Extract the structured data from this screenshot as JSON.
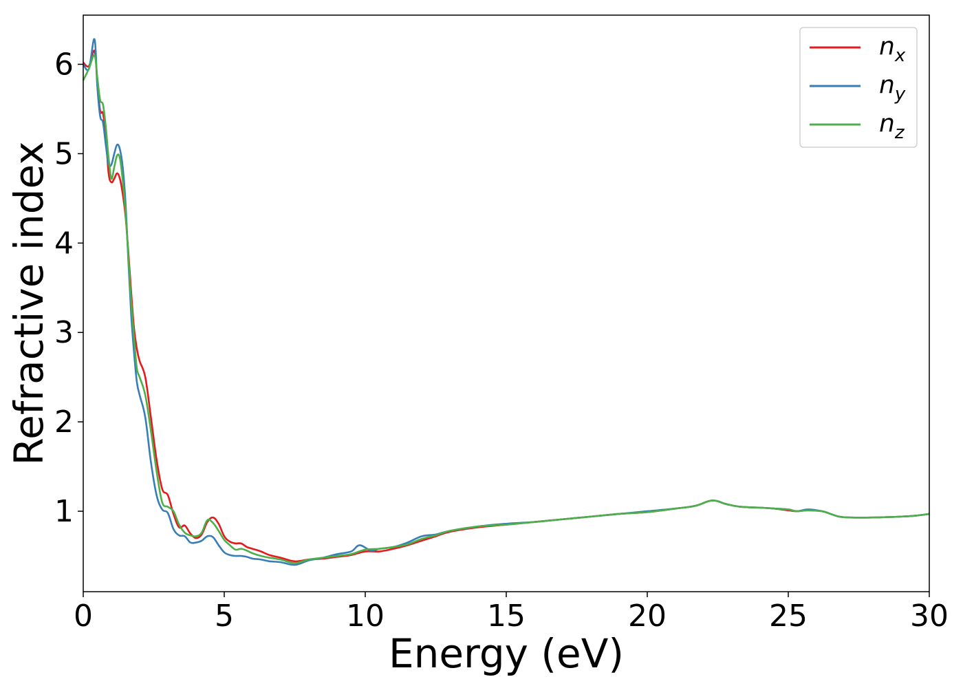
{
  "chart_data": {
    "type": "line",
    "xlabel": "Energy (eV)",
    "ylabel": "Refractive index",
    "xlim": [
      0,
      30
    ],
    "ylim": [
      0.1,
      6.55
    ],
    "xticks": [
      0,
      5,
      10,
      15,
      20,
      25,
      30
    ],
    "yticks": [
      1,
      2,
      3,
      4,
      5,
      6
    ],
    "grid": false,
    "legend_position": "top-right",
    "series": [
      {
        "name": "n",
        "subscript": "x",
        "color": "#e41a1c",
        "x": [
          0,
          0.2,
          0.4,
          0.5,
          0.6,
          0.7,
          0.8,
          0.9,
          1.0,
          1.1,
          1.2,
          1.3,
          1.4,
          1.5,
          1.6,
          1.7,
          1.8,
          1.9,
          2.0,
          2.2,
          2.4,
          2.6,
          2.8,
          3.0,
          3.2,
          3.4,
          3.6,
          3.8,
          4.0,
          4.2,
          4.4,
          4.6,
          4.8,
          5.0,
          5.2,
          5.4,
          5.6,
          5.8,
          6.0,
          6.3,
          6.6,
          7.0,
          7.5,
          8.0,
          8.5,
          9.0,
          9.5,
          10.0,
          10.5,
          11.0,
          11.5,
          12.0,
          12.5,
          13.0,
          14.0,
          15.0,
          16.0,
          17.0,
          18.0,
          19.0,
          20.0,
          21.0,
          21.7,
          22.3,
          22.8,
          23.3,
          24.0,
          24.5,
          25.0,
          25.3,
          25.7,
          26.2,
          26.5,
          26.8,
          27.2,
          28.0,
          29.0,
          29.5,
          30.0
        ],
        "y": [
          6.02,
          5.98,
          6.15,
          5.8,
          5.48,
          5.45,
          5.2,
          4.78,
          4.68,
          4.72,
          4.78,
          4.72,
          4.55,
          4.3,
          3.9,
          3.45,
          3.05,
          2.82,
          2.68,
          2.5,
          2.05,
          1.58,
          1.25,
          1.18,
          0.97,
          0.82,
          0.84,
          0.75,
          0.7,
          0.74,
          0.88,
          0.93,
          0.86,
          0.72,
          0.66,
          0.64,
          0.64,
          0.6,
          0.58,
          0.55,
          0.51,
          0.48,
          0.44,
          0.46,
          0.47,
          0.49,
          0.51,
          0.55,
          0.55,
          0.58,
          0.62,
          0.67,
          0.72,
          0.77,
          0.82,
          0.85,
          0.88,
          0.91,
          0.94,
          0.97,
          0.99,
          1.03,
          1.06,
          1.12,
          1.08,
          1.05,
          1.04,
          1.03,
          1.01,
          1.0,
          1.01,
          1.0,
          0.97,
          0.94,
          0.93,
          0.93,
          0.94,
          0.95,
          0.97
        ]
      },
      {
        "name": "n",
        "subscript": "y",
        "color": "#377eb8",
        "x": [
          0,
          0.2,
          0.4,
          0.5,
          0.6,
          0.7,
          0.8,
          0.9,
          1.0,
          1.1,
          1.2,
          1.3,
          1.4,
          1.5,
          1.6,
          1.7,
          1.8,
          1.9,
          2.0,
          2.2,
          2.4,
          2.6,
          2.8,
          3.0,
          3.2,
          3.4,
          3.6,
          3.8,
          4.0,
          4.2,
          4.4,
          4.6,
          4.8,
          5.0,
          5.2,
          5.4,
          5.6,
          5.8,
          6.0,
          6.3,
          6.6,
          7.0,
          7.5,
          8.0,
          8.5,
          9.0,
          9.5,
          9.8,
          10.2,
          10.5,
          11.0,
          11.5,
          12.0,
          12.5,
          13.0,
          14.0,
          15.0,
          16.0,
          17.0,
          18.0,
          19.0,
          20.0,
          21.0,
          21.7,
          22.3,
          22.8,
          23.3,
          24.0,
          24.5,
          25.0,
          25.3,
          25.7,
          26.2,
          26.5,
          26.8,
          27.2,
          28.0,
          29.0,
          29.5,
          30.0
        ],
        "y": [
          6.0,
          5.95,
          6.28,
          5.75,
          5.42,
          5.35,
          5.1,
          4.88,
          4.88,
          5.0,
          5.1,
          5.05,
          4.85,
          4.45,
          3.8,
          3.2,
          2.78,
          2.45,
          2.3,
          2.05,
          1.55,
          1.18,
          1.02,
          0.98,
          0.8,
          0.73,
          0.72,
          0.65,
          0.65,
          0.67,
          0.72,
          0.71,
          0.62,
          0.54,
          0.51,
          0.5,
          0.5,
          0.49,
          0.47,
          0.46,
          0.44,
          0.43,
          0.4,
          0.45,
          0.48,
          0.52,
          0.55,
          0.62,
          0.56,
          0.58,
          0.6,
          0.65,
          0.72,
          0.74,
          0.78,
          0.83,
          0.86,
          0.88,
          0.91,
          0.94,
          0.97,
          1.0,
          1.03,
          1.06,
          1.12,
          1.08,
          1.05,
          1.04,
          1.03,
          1.02,
          1.0,
          1.02,
          1.0,
          0.97,
          0.94,
          0.93,
          0.93,
          0.94,
          0.95,
          0.97
        ]
      },
      {
        "name": "n",
        "subscript": "z",
        "color": "#4daf4a",
        "x": [
          0,
          0.2,
          0.4,
          0.5,
          0.6,
          0.7,
          0.8,
          0.9,
          1.0,
          1.1,
          1.2,
          1.3,
          1.4,
          1.5,
          1.6,
          1.7,
          1.8,
          1.9,
          2.0,
          2.2,
          2.4,
          2.6,
          2.8,
          3.0,
          3.2,
          3.4,
          3.6,
          3.8,
          4.0,
          4.2,
          4.4,
          4.6,
          4.8,
          5.0,
          5.2,
          5.4,
          5.6,
          5.8,
          6.0,
          6.3,
          6.6,
          7.0,
          7.5,
          8.0,
          8.5,
          9.0,
          9.5,
          10.0,
          10.5,
          11.0,
          11.5,
          12.0,
          12.5,
          13.0,
          14.0,
          15.0,
          16.0,
          17.0,
          18.0,
          19.0,
          20.0,
          21.0,
          21.7,
          22.3,
          22.8,
          23.3,
          24.0,
          24.5,
          25.0,
          25.3,
          25.7,
          26.2,
          26.5,
          26.8,
          27.2,
          28.0,
          29.0,
          29.5,
          30.0
        ],
        "y": [
          5.82,
          5.95,
          6.1,
          5.85,
          5.6,
          5.55,
          5.3,
          4.95,
          4.72,
          4.85,
          4.98,
          4.95,
          4.7,
          4.35,
          3.85,
          3.35,
          2.95,
          2.6,
          2.5,
          2.3,
          1.9,
          1.45,
          1.1,
          1.05,
          1.0,
          0.85,
          0.76,
          0.73,
          0.72,
          0.76,
          0.9,
          0.87,
          0.78,
          0.68,
          0.62,
          0.57,
          0.58,
          0.56,
          0.53,
          0.5,
          0.48,
          0.46,
          0.42,
          0.46,
          0.48,
          0.5,
          0.52,
          0.57,
          0.58,
          0.6,
          0.63,
          0.69,
          0.73,
          0.78,
          0.83,
          0.85,
          0.88,
          0.91,
          0.94,
          0.97,
          0.99,
          1.03,
          1.06,
          1.12,
          1.08,
          1.05,
          1.04,
          1.03,
          1.02,
          1.0,
          1.01,
          1.0,
          0.97,
          0.94,
          0.93,
          0.93,
          0.94,
          0.95,
          0.97
        ]
      }
    ]
  }
}
